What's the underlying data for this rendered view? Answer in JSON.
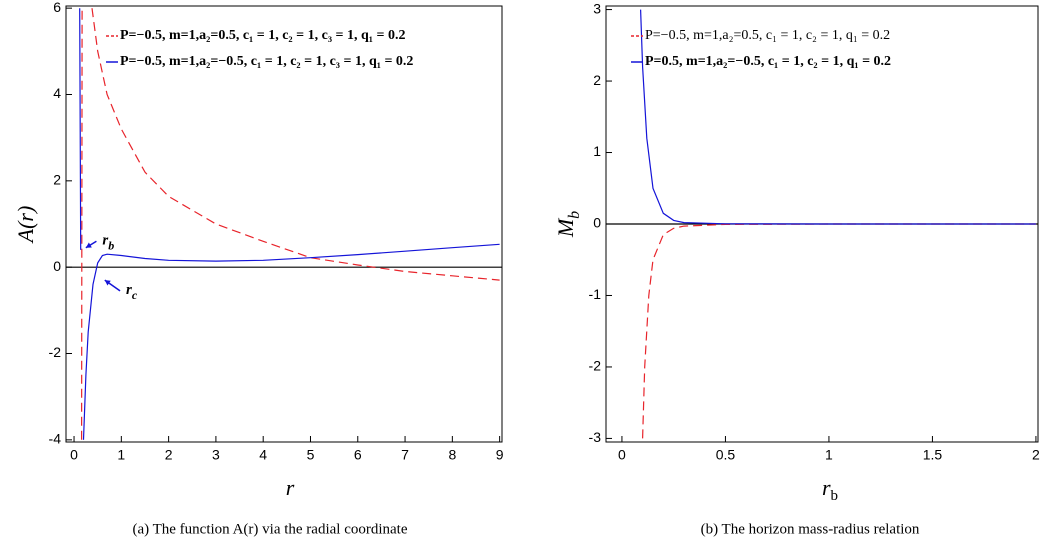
{
  "chart_data": [
    {
      "type": "line",
      "caption": "(a) The function A(r) via the radial coordinate",
      "x_label": "r",
      "y_label": "A(r)",
      "xlim": [
        -0.17,
        9.05
      ],
      "ylim": [
        -4.05,
        6.05
      ],
      "xticks": [
        0,
        1,
        2,
        3,
        4,
        5,
        6,
        7,
        8,
        9
      ],
      "yticks": [
        -4,
        -2,
        0,
        2,
        4,
        6
      ],
      "series": [
        {
          "name": "P=−0.5, m=1,a₂=0.5, c₁ = 1, c₂ = 1, c₃ = 1, q₁ = 0.2",
          "color": "#e8242b",
          "dashed": true,
          "bold": true,
          "x": [
            0.16,
            0.17,
            null,
            0.38,
            0.5,
            0.7,
            1,
            1.5,
            2,
            3,
            4,
            5,
            6,
            7,
            8,
            9
          ],
          "values": [
            -4,
            6,
            null,
            6,
            5,
            4,
            3.2,
            2.2,
            1.64,
            1.0,
            0.6,
            0.22,
            0.05,
            -0.1,
            -0.2,
            -0.3
          ]
        },
        {
          "name": "P=−0.5, m=1,a₂=−0.5, c₁ = 1, c₂ = 1, c₃ = 1, q₁ = 0.2",
          "color": "#1414d8",
          "dashed": false,
          "bold": true,
          "x": [
            0.12,
            0.14,
            null,
            0.2,
            0.25,
            0.3,
            0.4,
            0.5,
            0.6,
            0.7,
            1,
            1.5,
            2,
            3,
            4,
            5,
            6,
            7,
            8,
            9
          ],
          "values": [
            6,
            0.4,
            null,
            -4,
            -2.5,
            -1.5,
            -0.4,
            0.1,
            0.27,
            0.3,
            0.27,
            0.2,
            0.16,
            0.14,
            0.16,
            0.22,
            0.29,
            0.37,
            0.45,
            0.53
          ]
        }
      ],
      "annotations": [
        {
          "text": "r",
          "sub": "b",
          "x": 0.6,
          "y": 0.6,
          "arrow_to": [
            0.25,
            0.45
          ],
          "color": "#1414d8"
        },
        {
          "text": "r",
          "sub": "c",
          "x": 1.1,
          "y": -0.55,
          "arrow_to": [
            0.65,
            -0.3
          ],
          "color": "#1414d8"
        }
      ]
    },
    {
      "type": "line",
      "caption": "(b) The horizon mass-radius relation",
      "x_label": "r",
      "x_label_sub": "b",
      "y_label": "M",
      "y_label_sub": "b",
      "xlim": [
        -0.077,
        2.01
      ],
      "ylim": [
        -3.05,
        3.05
      ],
      "xticks": [
        0,
        0.5,
        1,
        1.5,
        2
      ],
      "yticks": [
        -3,
        -2,
        -1,
        0,
        1,
        2,
        3
      ],
      "series": [
        {
          "name": "P=−0.5, m=1,a₂=0.5, c₁ = 1, c₂ = 1, q₁ = 0.2",
          "color": "#e8242b",
          "dashed": true,
          "bold": false,
          "x": [
            0.1,
            0.11,
            0.13,
            0.15,
            0.2,
            0.25,
            0.3,
            0.5,
            1,
            2
          ],
          "values": [
            -3,
            -2,
            -1,
            -0.5,
            -0.15,
            -0.06,
            -0.03,
            -0.005,
            0,
            0
          ]
        },
        {
          "name": "P=0.5, m=1,a₂=−0.5,  c₁ = 1, c₂ = 1,  q₁ = 0.2",
          "color": "#1414d8",
          "dashed": false,
          "bold": true,
          "x": [
            0.09,
            0.1,
            0.12,
            0.15,
            0.2,
            0.25,
            0.3,
            0.5,
            1,
            2
          ],
          "values": [
            3,
            2.2,
            1.2,
            0.5,
            0.15,
            0.05,
            0.02,
            0.003,
            0,
            0
          ]
        }
      ]
    }
  ]
}
